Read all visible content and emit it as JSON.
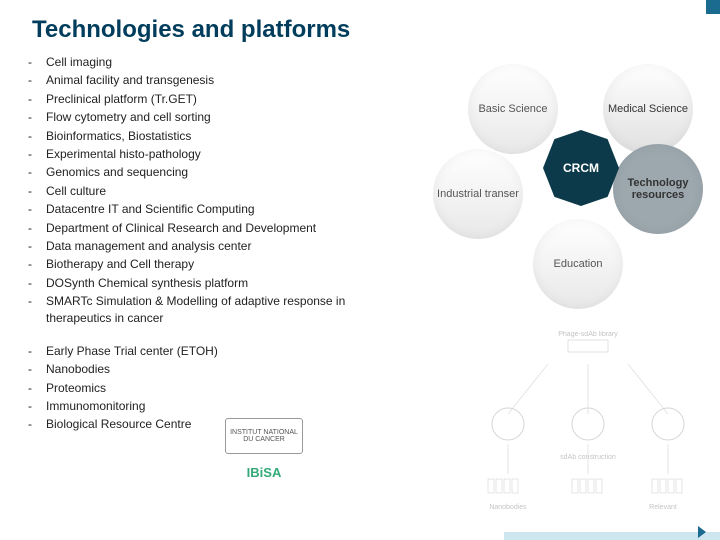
{
  "title": "Technologies and platforms",
  "bullet_char": "-",
  "list_main": [
    "Cell imaging",
    "Animal facility and transgenesis",
    "Preclinical platform (Tr.GET)",
    "Flow cytometry and cell sorting",
    "Bioinformatics, Biostatistics",
    "Experimental histo-pathology",
    "Genomics and sequencing",
    "Cell culture",
    "Datacentre IT and Scientific Computing",
    "Department of Clinical Research and Development",
    "Data management and analysis center",
    "Biotherapy and Cell therapy",
    "DOSynth Chemical synthesis platform",
    "SMARTc Simulation & Modelling of adaptive response in therapeutics in cancer"
  ],
  "list_secondary": [
    "Early Phase Trial center (ETOH)",
    "Nanobodies",
    "Proteomics",
    "Immunomonitoring",
    "Biological Resource Centre"
  ],
  "circles": {
    "c1": "Basic Science",
    "c2": "Medical Science",
    "c3": "Industrial transer",
    "c4": "Technology resources",
    "c5": "Education",
    "center": "CRCM"
  },
  "logos": {
    "inca": "INSTITUT NATIONAL DU CANCER",
    "ibisa": "IBiSA"
  },
  "colors": {
    "title": "#003d5c",
    "center_badge": "#0c3a4a",
    "accent": "#1a6b8f"
  }
}
